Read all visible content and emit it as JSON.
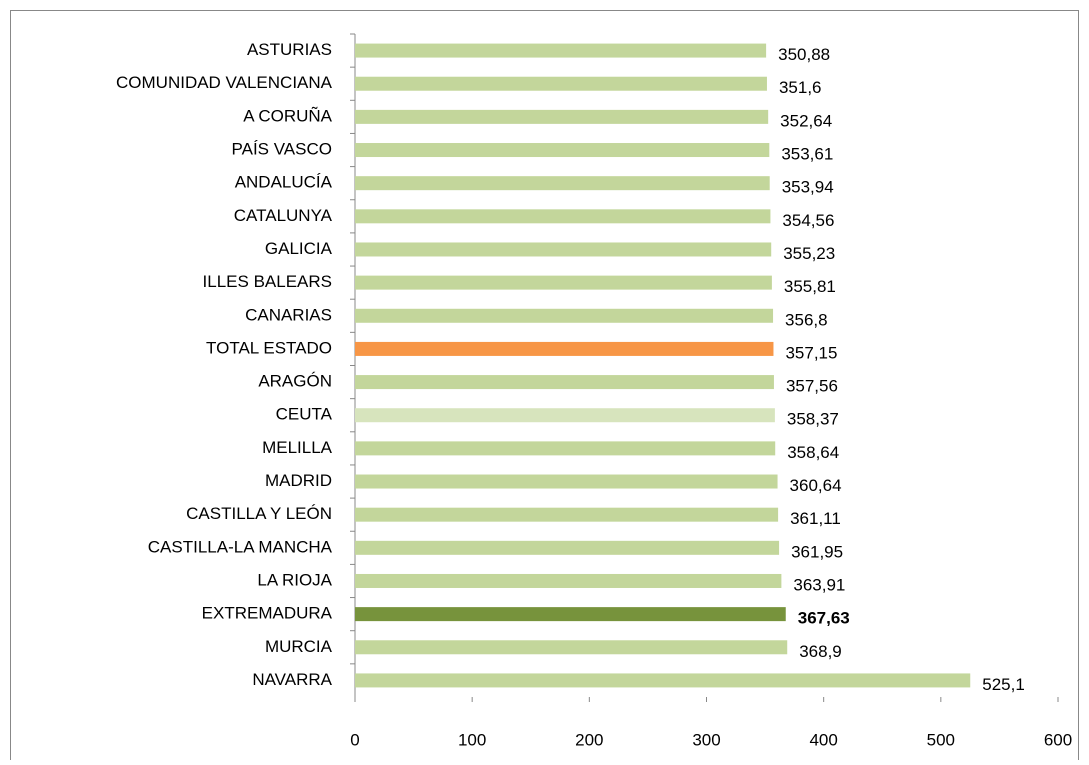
{
  "chart_data": {
    "type": "hbar",
    "categories": [
      "ASTURIAS",
      "COMUNIDAD VALENCIANA",
      "A CORUÑA",
      "PAÍS VASCO",
      "ANDALUCÍA",
      "CATALUNYA",
      "GALICIA",
      "ILLES BALEARS",
      "CANARIAS",
      "TOTAL ESTADO",
      "ARAGÓN",
      "CEUTA",
      "MELILLA",
      "MADRID",
      "CASTILLA Y LEÓN",
      "CASTILLA-LA  MANCHA",
      "LA RIOJA",
      "EXTREMADURA",
      "MURCIA",
      "NAVARRA"
    ],
    "values": [
      350.88,
      351.6,
      352.64,
      353.61,
      353.94,
      354.56,
      355.23,
      355.81,
      356.8,
      357.15,
      357.56,
      358.37,
      358.64,
      360.64,
      361.11,
      361.95,
      363.91,
      367.63,
      368.9,
      525.1
    ],
    "value_labels": [
      "350,88",
      "351,6",
      "352,64",
      "353,61",
      "353,94",
      "354,56",
      "355,23",
      "355,81",
      "356,8",
      "357,15",
      "357,56",
      "358,37",
      "358,64",
      "360,64",
      "361,11",
      "361,95",
      "363,91",
      "367,63",
      "368,9",
      "525,1"
    ],
    "colors": [
      "#c3d69b",
      "#c3d69b",
      "#c3d69b",
      "#c3d69b",
      "#c3d69b",
      "#c3d69b",
      "#c3d69b",
      "#c3d69b",
      "#c3d69b",
      "#f79646",
      "#c3d69b",
      "#d7e4bd",
      "#c3d69b",
      "#c3d69b",
      "#c3d69b",
      "#c3d69b",
      "#c3d69b",
      "#77933c",
      "#c3d69b",
      "#c3d69b"
    ],
    "emphasized_category": "EXTREMADURA",
    "xlim": [
      0,
      600
    ],
    "xticks": [
      0,
      100,
      200,
      300,
      400,
      500,
      600
    ]
  }
}
